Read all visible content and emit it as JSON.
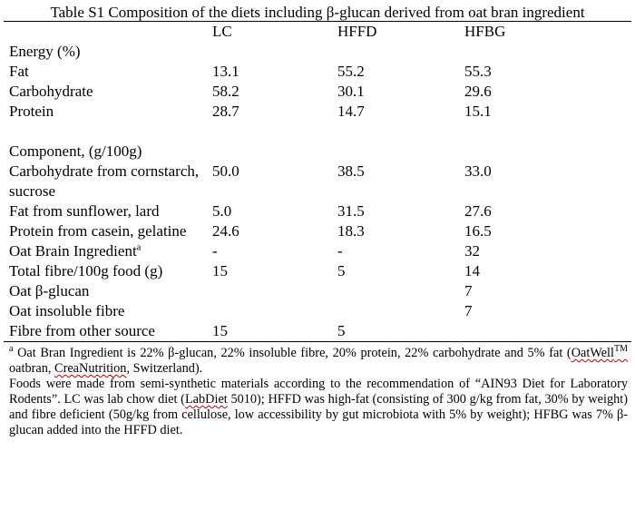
{
  "table": {
    "title": "Table S1 Composition of the diets including β-glucan derived from oat bran ingredient",
    "headers": [
      "",
      "LC",
      "HFFD",
      "HFBG"
    ],
    "energy_section": "Energy (%)",
    "energy_rows": [
      {
        "label": "Fat",
        "lc": "13.1",
        "hffd": "55.2",
        "hfbg": "55.3"
      },
      {
        "label": "Carbohydrate",
        "lc": "58.2",
        "hffd": "30.1",
        "hfbg": "29.6"
      },
      {
        "label": "Protein",
        "lc": "28.7",
        "hffd": "14.7",
        "hfbg": "15.1"
      }
    ],
    "component_section": "Component, (g/100g)",
    "component_rows": [
      {
        "label": "Carbohydrate from cornstarch, sucrose",
        "lc": "50.0",
        "hffd": "38.5",
        "hfbg": "33.0"
      },
      {
        "label": "Fat from sunflower, lard",
        "lc": "5.0",
        "hffd": "31.5",
        "hfbg": "27.6"
      },
      {
        "label": "Protein from casein, gelatine",
        "lc": "24.6",
        "hffd": "18.3",
        "hfbg": "16.5"
      },
      {
        "label": "Oat Brain Ingredient",
        "sup": "a",
        "lc": "-",
        "hffd": "-",
        "hfbg": "32"
      },
      {
        "label": "Total fibre/100g food (g)",
        "lc": "15",
        "hffd": "5",
        "hfbg": "14"
      },
      {
        "label": "Oat β-glucan",
        "lc": "",
        "hffd": "",
        "hfbg": "7"
      },
      {
        "label": "Oat insoluble fibre",
        "lc": "",
        "hffd": "",
        "hfbg": "7"
      },
      {
        "label": "Fibre from other source",
        "lc": "15",
        "hffd": "5",
        "hfbg": ""
      }
    ]
  },
  "footnotes": {
    "note_a": {
      "marker": "a",
      "text_1": " Oat Bran Ingredient is 22% β-glucan, 22% insoluble fibre, 20% protein, 22% carbohydrate and 5% fat (",
      "brand": "OatWell",
      "tm": "TM",
      "text_2": " oatbran, ",
      "company": "CreaNutrition",
      "text_3": ", Switzerland)."
    },
    "note_b": {
      "text_1": "Foods were made from semi-synthetic materials according to the recommendation of “AIN93 Diet for Laboratory Rodents”. LC was lab chow diet (",
      "labdiet": "LabDiet",
      "text_2": " 5010); HFFD was high-fat (consisting of 300 g/kg from fat, 30% by weight) and fibre deficient (50g/kg from cellulose, low accessibility by gut microbiota with 5% by weight); HFBG was 7% β-glucan added into the HFFD diet."
    }
  }
}
